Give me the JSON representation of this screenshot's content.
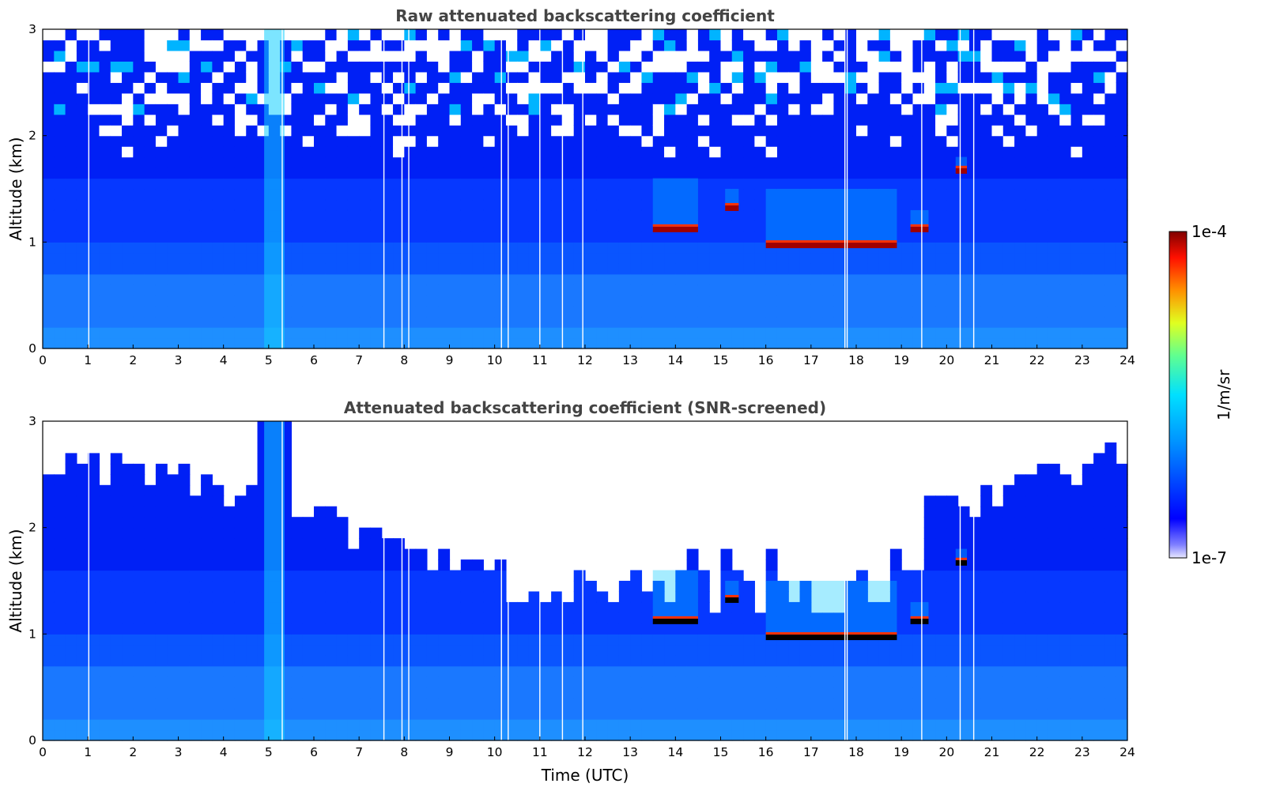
{
  "chart_data": [
    {
      "type": "heatmap",
      "title": "Raw attenuated backscattering coefficient",
      "xlabel": "",
      "ylabel": "Altitude (km)",
      "xlim": [
        0,
        24
      ],
      "ylim": [
        0,
        3
      ],
      "xticks": [
        "0",
        "1",
        "2",
        "3",
        "4",
        "5",
        "6",
        "7",
        "8",
        "9",
        "10",
        "11",
        "12",
        "13",
        "14",
        "15",
        "16",
        "17",
        "18",
        "19",
        "20",
        "21",
        "22",
        "23",
        "24"
      ],
      "yticks": [
        "0",
        "1",
        "2",
        "3"
      ],
      "screened": false,
      "gaps_utc": [
        1.02,
        5.3,
        7.55,
        7.95,
        8.1,
        10.15,
        10.3,
        11.0,
        11.5,
        11.95,
        17.75,
        17.8,
        19.45,
        20.3,
        20.6
      ],
      "cloud_base": [
        {
          "t0": 13.5,
          "t1": 14.5,
          "base_km": 1.1,
          "top_km": 1.6
        },
        {
          "t0": 15.1,
          "t1": 15.4,
          "base_km": 1.3,
          "top_km": 1.5
        },
        {
          "t0": 16.0,
          "t1": 18.9,
          "base_km": 0.95,
          "top_km": 1.5
        },
        {
          "t0": 19.2,
          "t1": 19.6,
          "base_km": 1.1,
          "top_km": 1.3
        },
        {
          "t0": 20.2,
          "t1": 20.45,
          "base_km": 1.65,
          "top_km": 1.8
        }
      ]
    },
    {
      "type": "heatmap",
      "title": "Attenuated backscattering coefficient (SNR-screened)",
      "xlabel": "Time (UTC)",
      "ylabel": "Altitude (km)",
      "xlim": [
        0,
        24
      ],
      "ylim": [
        0,
        3
      ],
      "xticks": [
        "0",
        "1",
        "2",
        "3",
        "4",
        "5",
        "6",
        "7",
        "8",
        "9",
        "10",
        "11",
        "12",
        "13",
        "14",
        "15",
        "16",
        "17",
        "18",
        "19",
        "20",
        "21",
        "22",
        "23",
        "24"
      ],
      "yticks": [
        "0",
        "1",
        "2",
        "3"
      ],
      "screened": true,
      "gaps_utc": [
        1.02,
        5.3,
        7.55,
        7.95,
        8.1,
        10.15,
        10.3,
        11.0,
        11.5,
        11.95,
        17.75,
        17.8,
        19.45,
        20.3,
        20.6
      ],
      "cloud_base": [
        {
          "t0": 13.5,
          "t1": 14.5,
          "base_km": 1.1,
          "top_km": 1.6
        },
        {
          "t0": 15.1,
          "t1": 15.4,
          "base_km": 1.3,
          "top_km": 1.5
        },
        {
          "t0": 16.0,
          "t1": 18.9,
          "base_km": 0.95,
          "top_km": 1.5
        },
        {
          "t0": 19.2,
          "t1": 19.6,
          "base_km": 1.1,
          "top_km": 1.3
        },
        {
          "t0": 20.2,
          "t1": 20.45,
          "base_km": 1.65,
          "top_km": 1.8
        }
      ]
    }
  ],
  "colorbar": {
    "max_label": "1e-4",
    "min_label": "1e-7",
    "unit_label": "1/m/sr",
    "colormap": "jet"
  },
  "colors": {
    "background": "#ffffff",
    "title": "#444444",
    "deep_blue": "#0000ff",
    "light_blue": "#1e90ff",
    "cyan": "#00e5ff",
    "red": "#c80000",
    "dark_red": "#800000"
  }
}
